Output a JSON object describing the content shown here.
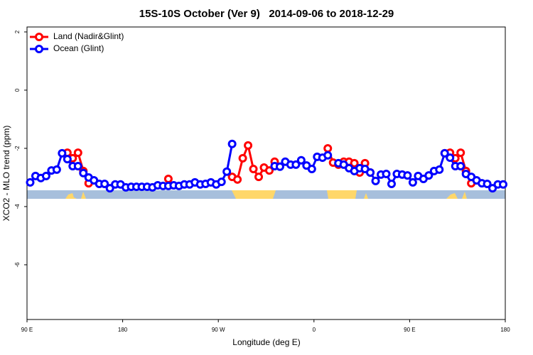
{
  "chart_data": {
    "type": "line",
    "title": "15S-10S October (Ver 9)   2014-09-06 to 2018-12-29",
    "x_label": "Longitude (deg E)",
    "y_label": "XCO2 - MLO trend (ppm)",
    "xlim": [
      90,
      540
    ],
    "ylim": [
      -7.88,
      2.17
    ],
    "xticks": [
      {
        "value": 90,
        "label": "90 E"
      },
      180,
      {
        "value": 270,
        "label": "90 W"
      },
      {
        "value": 360,
        "label": "0"
      },
      {
        "value": 450,
        "label": "90 E"
      },
      {
        "value": 540,
        "label": "180"
      }
    ],
    "yticks": [
      -6,
      -4,
      -2,
      0,
      2
    ],
    "legend": "top-left",
    "x": [
      93,
      98,
      103,
      108,
      113,
      118,
      123,
      128,
      133,
      138,
      143,
      148,
      153,
      158,
      163,
      168,
      173,
      178,
      183,
      188,
      193,
      198,
      203,
      208,
      213,
      218,
      223,
      228,
      233,
      238,
      243,
      248,
      253,
      258,
      263,
      268,
      273,
      278,
      283,
      288,
      293,
      298,
      303,
      308,
      313,
      318,
      323,
      328,
      333,
      338,
      343,
      348,
      353,
      358,
      363,
      368,
      373,
      378,
      383,
      388,
      393,
      398,
      403,
      408,
      413,
      418,
      423,
      428,
      433,
      438,
      443,
      448,
      453,
      458,
      463,
      468,
      473,
      478,
      483,
      488,
      493,
      498,
      503,
      508,
      513,
      518,
      523,
      528,
      533,
      538
    ],
    "series": [
      {
        "name": "Land (Nadir&Glint)",
        "color": "#ff0000",
        "values": [
          null,
          null,
          null,
          null,
          null,
          null,
          null,
          -2.15,
          -2.34,
          -2.15,
          -2.78,
          -3.2,
          null,
          null,
          null,
          null,
          null,
          null,
          null,
          null,
          null,
          null,
          null,
          null,
          null,
          null,
          -3.05,
          null,
          null,
          null,
          null,
          null,
          null,
          null,
          null,
          null,
          null,
          null,
          -2.98,
          -3.07,
          -2.34,
          -1.9,
          -2.71,
          -2.98,
          -2.66,
          -2.76,
          -2.46,
          null,
          null,
          null,
          null,
          null,
          null,
          null,
          null,
          null,
          -2.0,
          -2.49,
          -2.56,
          -2.46,
          -2.46,
          -2.51,
          -2.83,
          -2.51,
          -2.83,
          null,
          null,
          null,
          null,
          null,
          null,
          null,
          null,
          null,
          null,
          null,
          null,
          null,
          -2.17,
          -2.15,
          -2.34,
          -2.15,
          -2.78,
          -3.2,
          null,
          null,
          null,
          null,
          null,
          null
        ]
      },
      {
        "name": "Ocean (Glint)",
        "color": "#0000ff",
        "values": [
          -3.17,
          -2.95,
          -3.02,
          -2.95,
          -2.76,
          -2.73,
          -2.17,
          -2.37,
          -2.61,
          -2.61,
          -2.85,
          -3.0,
          -3.1,
          -3.22,
          -3.22,
          -3.37,
          -3.24,
          -3.24,
          -3.34,
          -3.32,
          -3.32,
          -3.32,
          -3.32,
          -3.34,
          -3.27,
          -3.29,
          -3.29,
          -3.27,
          -3.29,
          -3.24,
          -3.24,
          -3.17,
          -3.24,
          -3.22,
          -3.17,
          -3.24,
          -3.15,
          -2.8,
          -1.85,
          null,
          null,
          null,
          null,
          null,
          null,
          null,
          -2.61,
          -2.63,
          -2.46,
          -2.56,
          -2.56,
          -2.41,
          -2.59,
          -2.71,
          -2.29,
          -2.32,
          -2.24,
          null,
          -2.51,
          -2.56,
          -2.68,
          -2.78,
          -2.68,
          -2.71,
          -2.83,
          -3.12,
          -2.9,
          -2.88,
          -3.22,
          -2.88,
          -2.9,
          -2.93,
          -3.17,
          -2.95,
          -3.05,
          -2.93,
          -2.78,
          -2.73,
          -2.17,
          -2.32,
          -2.61,
          -2.61,
          -2.88,
          -2.98,
          -3.1,
          -3.2,
          -3.22,
          -3.37,
          -3.24,
          -3.24
        ]
      }
    ]
  }
}
